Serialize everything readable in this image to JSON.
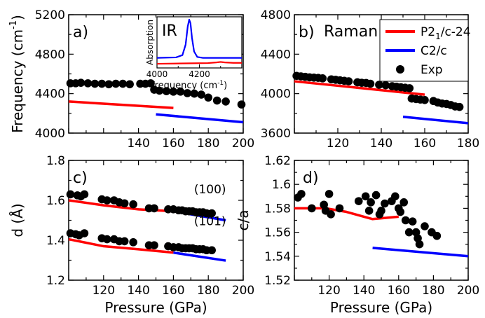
{
  "colors": {
    "red": "#ff0000",
    "blue": "#0000ff",
    "exp": "#000000"
  },
  "chart_data": [
    {
      "id": "a",
      "type": "line",
      "panel_label": "a)",
      "xlabel": "",
      "ylabel": "Frequency (cm",
      "ylabel_sup": "-1",
      "ylabel_end": ")",
      "xlim": [
        100,
        200
      ],
      "ylim": [
        4000,
        5200
      ],
      "xticks": [
        "140",
        "160",
        "180",
        "200"
      ],
      "xtick_values": [
        140,
        160,
        180,
        200
      ],
      "yticks": [
        "4000",
        "4400",
        "4800",
        "5200"
      ],
      "ytick_values": [
        4000,
        4400,
        4800,
        5200
      ],
      "series": [
        {
          "name": "P21/c-24",
          "color": "#ff0000",
          "style": "line",
          "x": [
            100,
            160
          ],
          "y": [
            4320,
            4255
          ]
        },
        {
          "name": "C2/c",
          "color": "#0000ff",
          "style": "line",
          "x": [
            150,
            200
          ],
          "y": [
            4190,
            4110
          ]
        },
        {
          "name": "Exp",
          "color": "#000000",
          "style": "scatter",
          "x": [
            101,
            104,
            107,
            111,
            115,
            119,
            123,
            127,
            131,
            135,
            141,
            144,
            147,
            149,
            152,
            156,
            160,
            164,
            168,
            172,
            176,
            180,
            185,
            190,
            199
          ],
          "y": [
            4505,
            4505,
            4510,
            4505,
            4500,
            4500,
            4495,
            4500,
            4500,
            4495,
            4500,
            4500,
            4505,
            4440,
            4430,
            4425,
            4420,
            4420,
            4405,
            4400,
            4390,
            4360,
            4330,
            4320,
            4290
          ]
        }
      ],
      "inset": {
        "label": "IR",
        "ylabel": "Absorption",
        "xlabel": "Frequency (cm",
        "xlabel_sup": "-1",
        "xlabel_end": ")",
        "xlim": [
          4000,
          4400
        ],
        "xticks": [
          "4000",
          "4200"
        ],
        "xtick_values": [
          4000,
          4200
        ],
        "series": [
          {
            "name": "P21/c-24",
            "color": "#ff0000",
            "x": [
              4000,
              4080,
              4160,
              4240,
              4280,
              4300,
              4320,
              4360,
              4400
            ],
            "y": [
              0.03,
              0.035,
              0.04,
              0.045,
              0.06,
              0.07,
              0.06,
              0.05,
              0.05
            ]
          },
          {
            "name": "C2/c",
            "color": "#0000ff",
            "x": [
              4000,
              4090,
              4120,
              4135,
              4145,
              4152,
              4158,
              4165,
              4175,
              4190,
              4215,
              4280,
              4400
            ],
            "y": [
              0.16,
              0.17,
              0.22,
              0.45,
              0.85,
              1.0,
              0.92,
              0.6,
              0.3,
              0.18,
              0.16,
              0.16,
              0.16
            ]
          }
        ]
      }
    },
    {
      "id": "b",
      "type": "line",
      "panel_label": "b)",
      "title": "Raman",
      "xlabel": "",
      "ylabel": "",
      "xlim": [
        100,
        180
      ],
      "ylim": [
        3600,
        4800
      ],
      "xticks": [
        "120",
        "140",
        "160",
        "180"
      ],
      "xtick_values": [
        120,
        140,
        160,
        180
      ],
      "yticks": [
        "3600",
        "4000",
        "4400",
        "4800"
      ],
      "ytick_values": [
        3600,
        4000,
        4400,
        4800
      ],
      "legend": {
        "position": "top-right",
        "entries": [
          {
            "label": "P2",
            "sub": "1",
            "rest": "/c-24",
            "kind": "line",
            "color": "#ff0000"
          },
          {
            "label": "C2/c",
            "sub": "",
            "rest": "",
            "kind": "line",
            "color": "#0000ff"
          },
          {
            "label": "Exp",
            "sub": "",
            "rest": "",
            "kind": "dot",
            "color": "#000000"
          }
        ]
      },
      "series": [
        {
          "name": "P21/c-24",
          "color": "#ff0000",
          "style": "line",
          "x": [
            100,
            160
          ],
          "y": [
            4125,
            3990
          ]
        },
        {
          "name": "C2/c",
          "color": "#0000ff",
          "style": "line",
          "x": [
            150,
            180
          ],
          "y": [
            3765,
            3700
          ]
        },
        {
          "name": "Exp",
          "color": "#000000",
          "style": "scatter",
          "x": [
            101,
            103,
            105,
            107,
            109,
            111,
            113,
            117,
            119,
            121,
            123,
            125,
            129,
            131,
            133,
            135,
            139,
            142,
            145,
            147,
            149,
            151,
            153,
            154,
            156,
            158,
            160,
            164,
            166,
            168,
            170,
            172,
            174,
            176
          ],
          "y": [
            4180,
            4175,
            4170,
            4165,
            4162,
            4160,
            4155,
            4145,
            4140,
            4135,
            4130,
            4125,
            4115,
            4110,
            4108,
            4100,
            4090,
            4085,
            4075,
            4070,
            4065,
            4060,
            4055,
            3950,
            3945,
            3940,
            3935,
            3925,
            3910,
            3900,
            3895,
            3885,
            3870,
            3865
          ]
        }
      ]
    },
    {
      "id": "c",
      "type": "line",
      "panel_label": "c)",
      "xlabel": "Pressure (GPa)",
      "ylabel": "d (Å)",
      "xlim": [
        100,
        200
      ],
      "ylim": [
        1.2,
        1.8
      ],
      "xticks": [
        "120",
        "140",
        "160",
        "180",
        "200"
      ],
      "xtick_values": [
        120,
        140,
        160,
        180,
        200
      ],
      "yticks": [
        "1.2",
        "1.4",
        "1.6",
        "1.8"
      ],
      "ytick_values": [
        1.2,
        1.4,
        1.6,
        1.8
      ],
      "annotations": [
        {
          "text": "(100)",
          "x": 181,
          "y": 1.635
        },
        {
          "text": "(101)",
          "x": 181,
          "y": 1.475
        }
      ],
      "series": [
        {
          "name": "P21/c-24 (100)",
          "color": "#ff0000",
          "style": "line",
          "x": [
            100,
            120,
            140,
            160
          ],
          "y": [
            1.6,
            1.575,
            1.555,
            1.545
          ]
        },
        {
          "name": "C2/c (100)",
          "color": "#0000ff",
          "style": "line",
          "x": [
            160,
            190
          ],
          "y": [
            1.545,
            1.5
          ]
        },
        {
          "name": "P21/c-24 (101)",
          "color": "#ff0000",
          "style": "line",
          "x": [
            100,
            120,
            140,
            160
          ],
          "y": [
            1.405,
            1.37,
            1.355,
            1.338
          ]
        },
        {
          "name": "C2/c (101)",
          "color": "#0000ff",
          "style": "line",
          "x": [
            160,
            190
          ],
          "y": [
            1.338,
            1.298
          ]
        },
        {
          "name": "Exp (100)",
          "color": "#000000",
          "style": "scatter",
          "x": [
            101,
            105,
            107,
            109,
            119,
            122,
            126,
            129,
            132,
            137,
            146,
            149,
            157,
            160,
            163,
            165,
            167,
            169,
            171,
            173,
            175,
            177,
            179,
            182
          ],
          "y": [
            1.63,
            1.625,
            1.62,
            1.63,
            1.605,
            1.6,
            1.6,
            1.59,
            1.585,
            1.58,
            1.56,
            1.56,
            1.555,
            1.555,
            1.55,
            1.55,
            1.545,
            1.545,
            1.545,
            1.54,
            1.54,
            1.54,
            1.535,
            1.535
          ]
        },
        {
          "name": "Exp (101)",
          "color": "#000000",
          "style": "scatter",
          "x": [
            101,
            104,
            106,
            109,
            119,
            122,
            126,
            129,
            132,
            137,
            146,
            149,
            157,
            160,
            163,
            165,
            167,
            169,
            171,
            173,
            175,
            177,
            179,
            182
          ],
          "y": [
            1.435,
            1.43,
            1.425,
            1.435,
            1.41,
            1.405,
            1.405,
            1.395,
            1.395,
            1.39,
            1.375,
            1.375,
            1.37,
            1.365,
            1.365,
            1.36,
            1.36,
            1.36,
            1.36,
            1.355,
            1.355,
            1.355,
            1.35,
            1.35
          ]
        }
      ]
    },
    {
      "id": "d",
      "type": "line",
      "panel_label": "d)",
      "xlabel": "Pressure (GPa)",
      "ylabel": "c/a",
      "xlim": [
        100,
        200
      ],
      "ylim": [
        1.52,
        1.62
      ],
      "xticks": [
        "120",
        "140",
        "160",
        "180",
        "200"
      ],
      "xtick_values": [
        120,
        140,
        160,
        180,
        200
      ],
      "yticks": [
        "1.52",
        "1.54",
        "1.56",
        "1.58",
        "1.6",
        "1.62"
      ],
      "ytick_values": [
        1.52,
        1.54,
        1.56,
        1.58,
        1.6,
        1.62
      ],
      "series": [
        {
          "name": "P21/c-24",
          "color": "#ff0000",
          "style": "line",
          "x": [
            100,
            118,
            130,
            145,
            160
          ],
          "y": [
            1.58,
            1.58,
            1.577,
            1.571,
            1.573
          ]
        },
        {
          "name": "C2/c",
          "color": "#0000ff",
          "style": "line",
          "x": [
            145,
            200
          ],
          "y": [
            1.547,
            1.54
          ]
        },
        {
          "name": "Exp",
          "color": "#000000",
          "style": "scatter",
          "x": [
            102,
            104,
            110,
            117,
            118,
            120,
            121,
            126,
            137,
            141,
            143,
            144,
            147,
            149,
            150,
            152,
            156,
            158,
            160,
            161,
            163,
            164,
            166,
            168,
            170,
            171,
            172,
            175,
            179,
            182
          ],
          "y": [
            1.589,
            1.592,
            1.58,
            1.583,
            1.578,
            1.592,
            1.575,
            1.58,
            1.586,
            1.59,
            1.578,
            1.585,
            1.591,
            1.575,
            1.578,
            1.584,
            1.586,
            1.59,
            1.58,
            1.577,
            1.585,
            1.57,
            1.56,
            1.569,
            1.56,
            1.555,
            1.55,
            1.565,
            1.56,
            1.557
          ]
        }
      ]
    }
  ]
}
